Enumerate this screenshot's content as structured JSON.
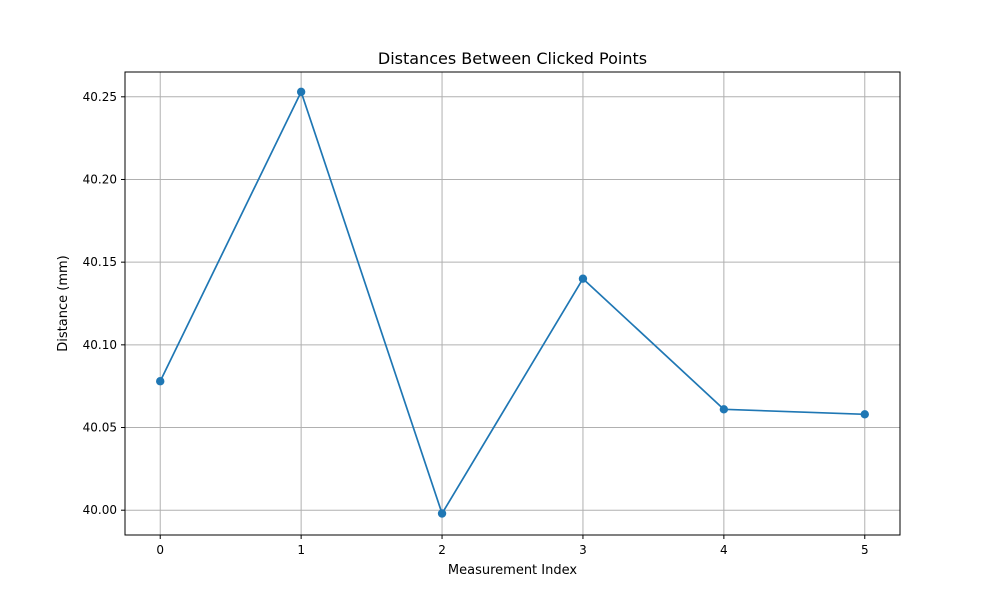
{
  "chart_data": {
    "type": "line",
    "title": "Distances Between Clicked Points",
    "xlabel": "Measurement Index",
    "ylabel": "Distance (mm)",
    "x": [
      0,
      1,
      2,
      3,
      4,
      5
    ],
    "series": [
      {
        "values": [
          40.078,
          40.253,
          39.998,
          40.14,
          40.061,
          40.058
        ],
        "color": "#1f77b4",
        "marker": "circle"
      }
    ],
    "xlim": [
      -0.25,
      5.25
    ],
    "ylim": [
      39.985,
      40.265
    ],
    "xticks": [
      0,
      1,
      2,
      3,
      4,
      5
    ],
    "xtick_labels": [
      "0",
      "1",
      "2",
      "3",
      "4",
      "5"
    ],
    "yticks": [
      40.0,
      40.05,
      40.1,
      40.15,
      40.2,
      40.25
    ],
    "ytick_labels": [
      "40.00",
      "40.05",
      "40.10",
      "40.15",
      "40.20",
      "40.25"
    ],
    "grid": true,
    "grid_color": "#b0b0b0"
  }
}
